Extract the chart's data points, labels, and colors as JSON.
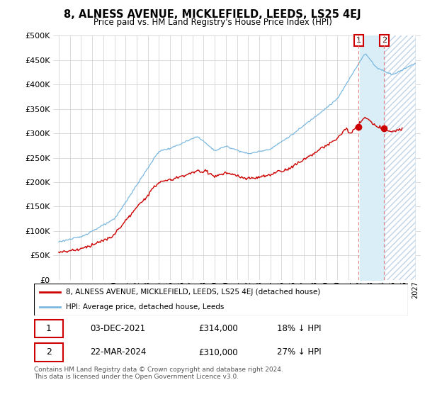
{
  "title": "8, ALNESS AVENUE, MICKLEFIELD, LEEDS, LS25 4EJ",
  "subtitle": "Price paid vs. HM Land Registry's House Price Index (HPI)",
  "legend_line1": "8, ALNESS AVENUE, MICKLEFIELD, LEEDS, LS25 4EJ (detached house)",
  "legend_line2": "HPI: Average price, detached house, Leeds",
  "footnote": "Contains HM Land Registry data © Crown copyright and database right 2024.\nThis data is licensed under the Open Government Licence v3.0.",
  "sale1_date": "03-DEC-2021",
  "sale1_price": "£314,000",
  "sale1_hpi": "18% ↓ HPI",
  "sale2_date": "22-MAR-2024",
  "sale2_price": "£310,000",
  "sale2_hpi": "27% ↓ HPI",
  "hpi_color": "#7ab8e0",
  "price_color": "#cc0000",
  "shade_color": "#daeef8",
  "hatch_color": "#c8d8e8",
  "ylim_min": 0,
  "ylim_max": 500000,
  "yticks": [
    0,
    50000,
    100000,
    150000,
    200000,
    250000,
    300000,
    350000,
    400000,
    450000,
    500000
  ],
  "xmin": 1994.5,
  "xmax": 2027.5,
  "grid_color": "#cccccc",
  "sale1_x": 2021.92,
  "sale2_x": 2024.21,
  "sale1_price_val": 314000,
  "sale2_price_val": 310000
}
